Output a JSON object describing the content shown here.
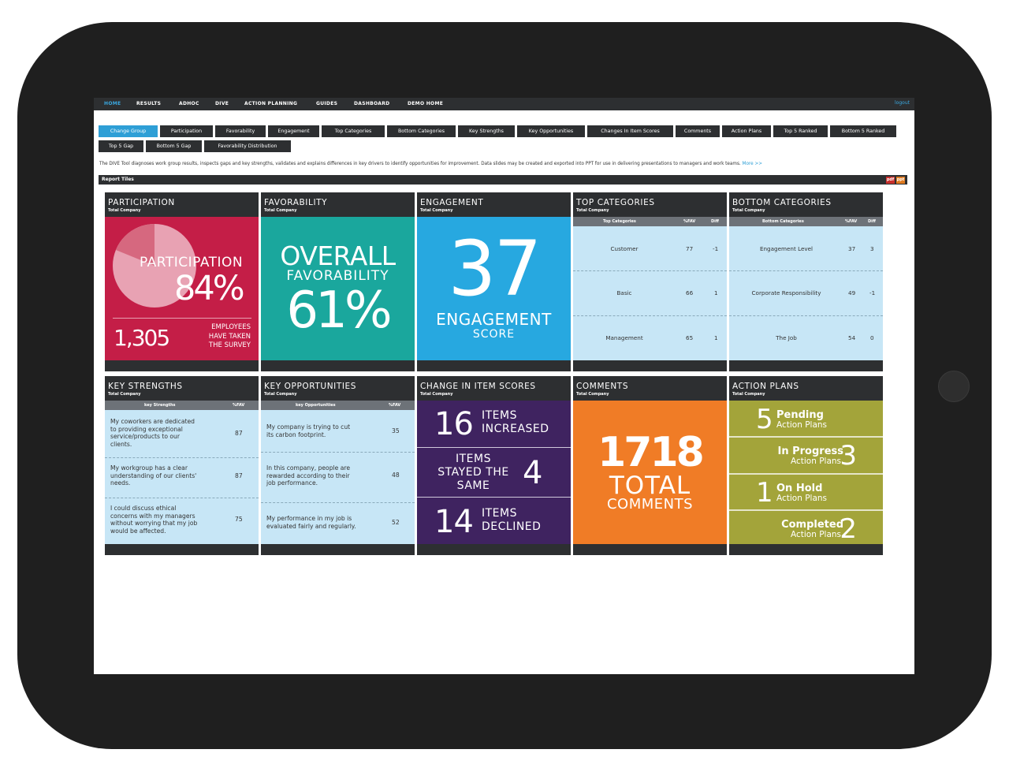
{
  "nav": {
    "items": [
      "HOME",
      "RESULTS",
      "ADHOC",
      "DIVE",
      "ACTION PLANNING",
      "GUIDES",
      "DASHBOARD",
      "DEMO HOME"
    ],
    "logout": "logout"
  },
  "buttons": {
    "row1": [
      "Change Group",
      "Participation",
      "Favorability",
      "Engagement",
      "Top Categories",
      "Bottom Categories",
      "Key Strengths",
      "Key Opportunities",
      "Changes In Item Scores",
      "Comments",
      "Action Plans",
      "Top 5 Ranked",
      "Bottom 5 Ranked"
    ],
    "row2": [
      "Top 5 Gap",
      "Bottom 5 Gap",
      "Favorability Distribution"
    ]
  },
  "description": {
    "text": "The DIVE Tool diagnoses work group results, inspects gaps and key strengths, validates and explains differences in key drivers to identify opportunities for improvement. Data slides may be created and exported into PPT for use in delivering presentations to managers and work teams.",
    "more": "More >>"
  },
  "report_tiles": {
    "label": "Report Tiles",
    "pdf": "pdf",
    "ppt": "ppt"
  },
  "subtitle": "Total Company",
  "participation": {
    "title": "PARTICIPATION",
    "big_label": "PARTICIPATION",
    "percent": "84%",
    "count": "1,305",
    "caption": [
      "EMPLOYEES",
      "HAVE TAKEN",
      "THE SURVEY"
    ]
  },
  "favorability": {
    "title": "FAVORABILITY",
    "line1": "OVERALL",
    "line2": "FAVORABILITY",
    "percent": "61%"
  },
  "engagement": {
    "title": "ENGAGEMENT",
    "score": "37",
    "line1": "ENGAGEMENT",
    "line2": "SCORE"
  },
  "top_categories": {
    "title": "TOP CATEGORIES",
    "headers": [
      "Top Categories",
      "%FAV",
      "Diff"
    ],
    "rows": [
      {
        "name": "Customer",
        "fav": "77",
        "diff": "-1"
      },
      {
        "name": "Basic",
        "fav": "66",
        "diff": "1"
      },
      {
        "name": "Management",
        "fav": "65",
        "diff": "1"
      }
    ]
  },
  "bottom_categories": {
    "title": "BOTTOM CATEGORIES",
    "headers": [
      "Bottom Categories",
      "%FAV",
      "Diff"
    ],
    "rows": [
      {
        "name": "Engagement Level",
        "fav": "37",
        "diff": "3"
      },
      {
        "name": "Corporate Responsibility",
        "fav": "49",
        "diff": "-1"
      },
      {
        "name": "The Job",
        "fav": "54",
        "diff": "0"
      }
    ]
  },
  "key_strengths": {
    "title": "KEY STRENGTHS",
    "headers": [
      "key Strengths",
      "%FAV"
    ],
    "rows": [
      {
        "text": [
          "My coworkers are dedicated",
          "to providing exceptional",
          "service/products to our",
          "clients."
        ],
        "fav": "87"
      },
      {
        "text": [
          "My workgroup has a clear",
          "understanding of our clients'",
          "needs."
        ],
        "fav": "87"
      },
      {
        "text": [
          "I could discuss ethical",
          "concerns with my managers",
          "without worrying that my job",
          "would be affected."
        ],
        "fav": "75"
      }
    ]
  },
  "key_opportunities": {
    "title": "KEY OPPORTUNITIES",
    "headers": [
      "key Opportunities",
      "%FAV"
    ],
    "rows": [
      {
        "text": [
          "My company is trying to cut",
          "its carbon footprint."
        ],
        "fav": "35"
      },
      {
        "text": [
          "In this company, people are",
          "rewarded according to their",
          "job performance."
        ],
        "fav": "48"
      },
      {
        "text": [
          "My performance in my job is",
          "evaluated fairly and regularly."
        ],
        "fav": "52"
      }
    ]
  },
  "change_scores": {
    "title": "CHANGE IN ITEM SCORES",
    "increased": {
      "num": "16",
      "l1": "ITEMS",
      "l2": "INCREASED"
    },
    "same": {
      "num": "4",
      "l1": "ITEMS",
      "l2": "STAYED THE",
      "l3": "SAME"
    },
    "declined": {
      "num": "14",
      "l1": "ITEMS",
      "l2": "DECLINED"
    }
  },
  "comments": {
    "title": "COMMENTS",
    "count": "1718",
    "line1": "TOTAL",
    "line2": "COMMENTS"
  },
  "action_plans": {
    "title": "ACTION PLANS",
    "sub": "Action Plans",
    "items": [
      {
        "num": "5",
        "label": "Pending"
      },
      {
        "num": "3",
        "label": "In Progress"
      },
      {
        "num": "1",
        "label": "On Hold"
      },
      {
        "num": "2",
        "label": "Completed"
      }
    ]
  },
  "colors": {
    "participation": "#c41e47",
    "favorability": "#1aa79d",
    "engagement": "#27a8e0",
    "change": "#3f2360",
    "comments": "#f07c26",
    "action": "#a3a43a",
    "accent": "#2e9fd6"
  }
}
